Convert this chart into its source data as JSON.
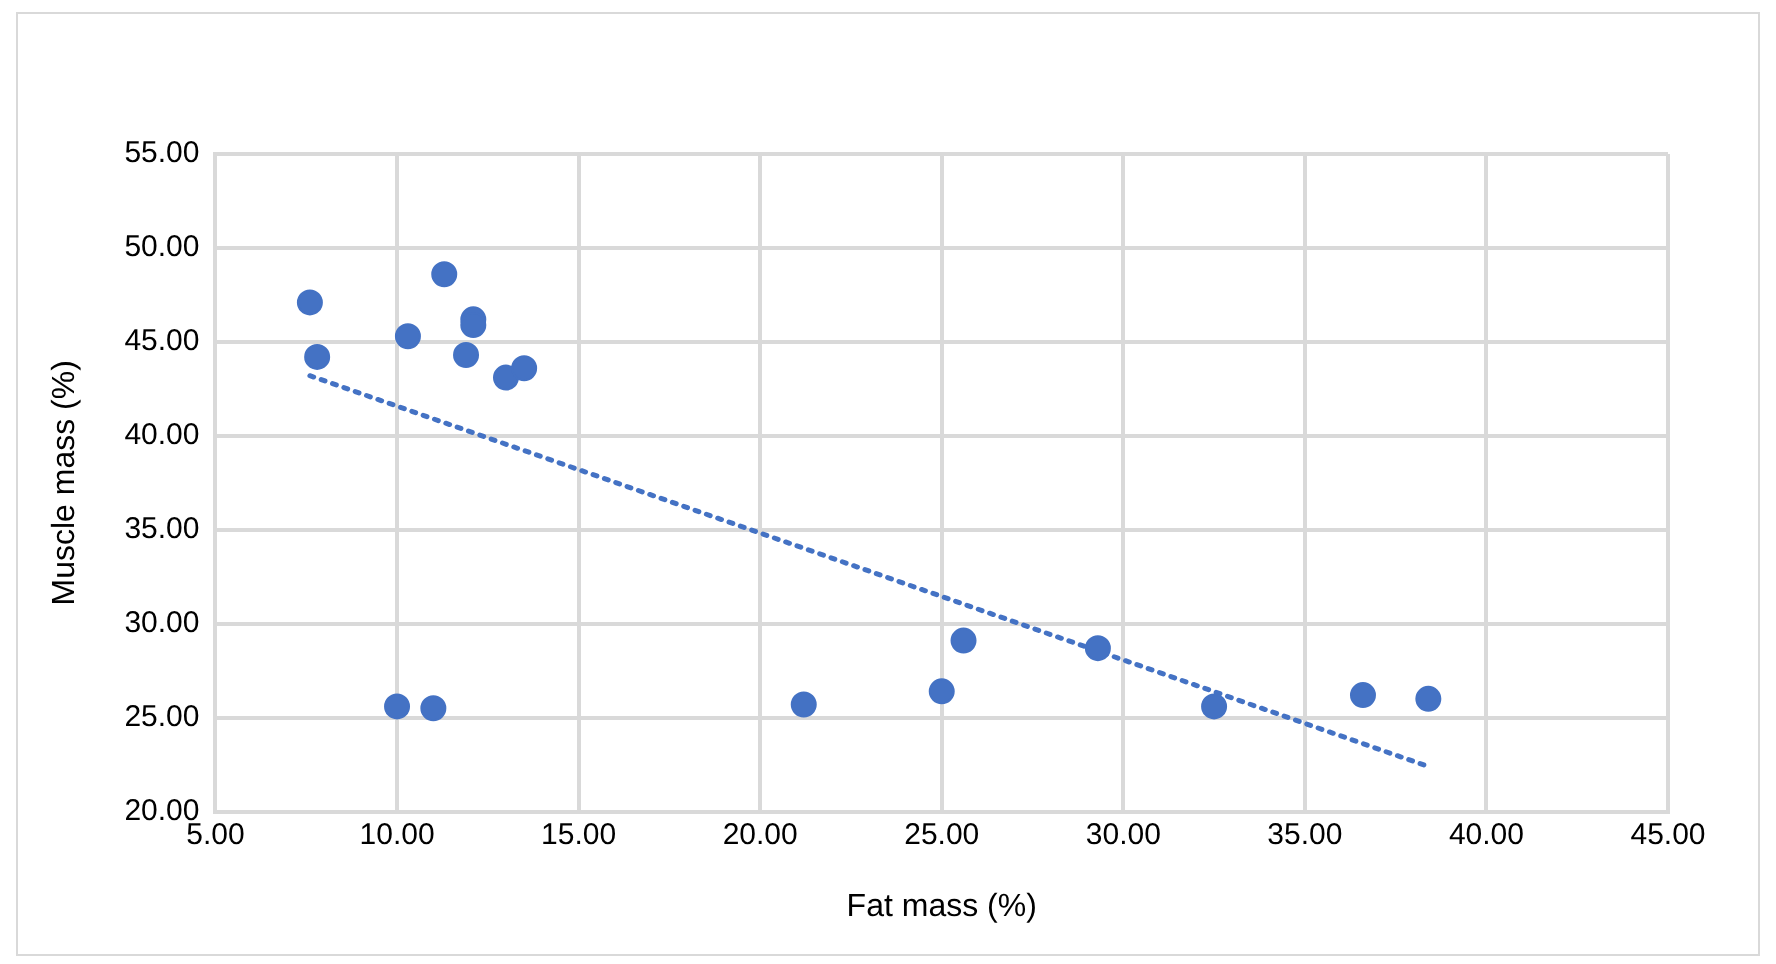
{
  "chart_data": {
    "type": "scatter",
    "xlabel": "Fat mass (%)",
    "ylabel": "Muscle mass (%)",
    "xlim": [
      5,
      45
    ],
    "xticks": [
      {
        "value": 5,
        "label": "5.00"
      },
      {
        "value": 10,
        "label": "10.00"
      },
      {
        "value": 15,
        "label": "15.00"
      },
      {
        "value": 20,
        "label": "20.00"
      },
      {
        "value": 25,
        "label": "25.00"
      },
      {
        "value": 30,
        "label": "30.00"
      },
      {
        "value": 35,
        "label": "35.00"
      },
      {
        "value": 40,
        "label": "40.00"
      },
      {
        "value": 45,
        "label": "45.00"
      }
    ],
    "ylim": [
      20,
      55
    ],
    "yticks": [
      {
        "value": 20,
        "label": "20.00"
      },
      {
        "value": 25,
        "label": "25.00"
      },
      {
        "value": 30,
        "label": "30.00"
      },
      {
        "value": 35,
        "label": "35.00"
      },
      {
        "value": 40,
        "label": "40.00"
      },
      {
        "value": 45,
        "label": "45.00"
      },
      {
        "value": 50,
        "label": "50.00"
      },
      {
        "value": 55,
        "label": "55.00"
      }
    ],
    "grid": true,
    "marker": "circle",
    "series": [
      {
        "color": "#4472c4",
        "x": [
          7.6,
          7.8,
          11.3,
          10.3,
          12.1,
          12.1,
          11.9,
          13.0,
          13.5,
          10.0,
          11.0,
          21.2,
          25.0,
          25.6,
          29.3,
          32.5,
          36.6,
          38.4
        ],
        "values": [
          47.1,
          44.2,
          48.6,
          45.3,
          46.2,
          45.9,
          44.3,
          43.1,
          43.6,
          25.6,
          25.5,
          25.7,
          26.4,
          29.1,
          28.7,
          25.6,
          26.2,
          26.0
        ]
      },
      {
        "type": "line",
        "color": "#4472c4",
        "line_style": "dotted",
        "marker": "none",
        "x": [
          7.6,
          38.4
        ],
        "values": [
          43.2,
          22.4
        ]
      }
    ]
  }
}
